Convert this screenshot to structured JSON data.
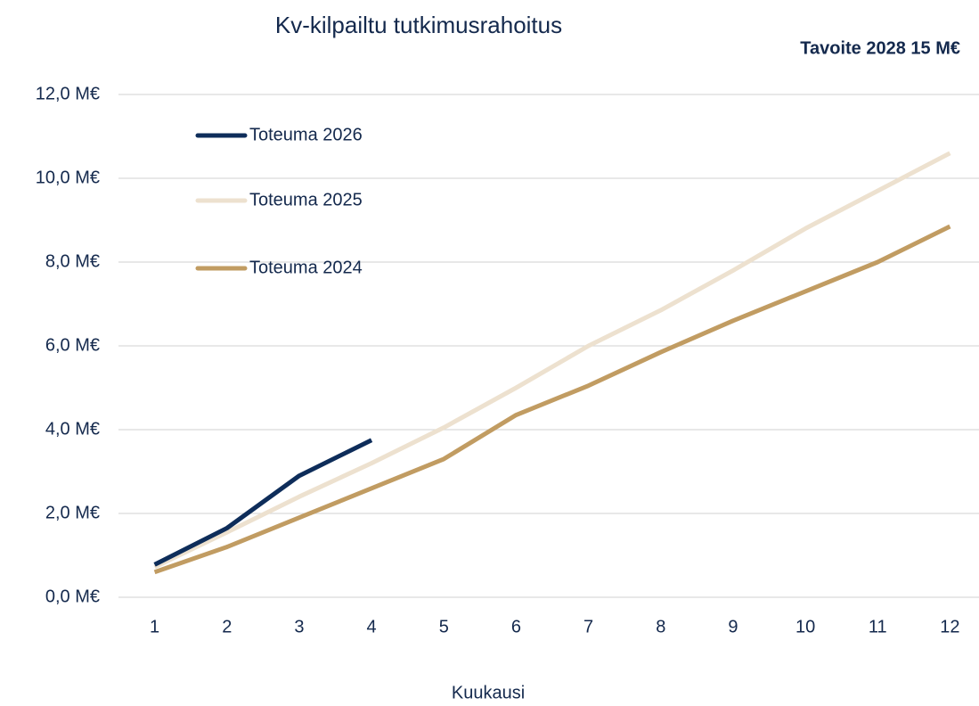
{
  "chart_data": {
    "type": "line",
    "title": "Kv-kilpailtu tutkimusrahoitus",
    "annotation": "Tavoite 2028 15 M€",
    "x_label": "Kuukausi",
    "categories": [
      "1",
      "2",
      "3",
      "4",
      "5",
      "6",
      "7",
      "8",
      "9",
      "10",
      "11",
      "12"
    ],
    "series": [
      {
        "name": "Toteuma 2026",
        "color": "#0e2d5a",
        "values": [
          0.78,
          1.65,
          2.9,
          3.75,
          null,
          null,
          null,
          null,
          null,
          null,
          null,
          null
        ]
      },
      {
        "name": "Toteuma 2025",
        "color": "#ede1cf",
        "values": [
          0.72,
          1.55,
          2.4,
          3.2,
          4.05,
          5.0,
          6.0,
          6.85,
          7.8,
          8.8,
          9.7,
          10.6
        ]
      },
      {
        "name": "Toteuma 2024",
        "color": "#c19c62",
        "values": [
          0.6,
          1.2,
          1.9,
          2.6,
          3.3,
          4.35,
          5.05,
          5.85,
          6.6,
          7.3,
          8.0,
          8.85
        ]
      }
    ],
    "ylim": [
      0,
      12
    ],
    "yticks": [
      {
        "value": 0,
        "label": "0,0 M€"
      },
      {
        "value": 2,
        "label": "2,0 M€"
      },
      {
        "value": 4,
        "label": "4,0 M€"
      },
      {
        "value": 6,
        "label": "6,0 M€"
      },
      {
        "value": 8,
        "label": "8,0 M€"
      },
      {
        "value": 10,
        "label": "10,0 M€"
      },
      {
        "value": 12,
        "label": "12,0 M€"
      }
    ],
    "grid": true,
    "legend": "upper left"
  }
}
